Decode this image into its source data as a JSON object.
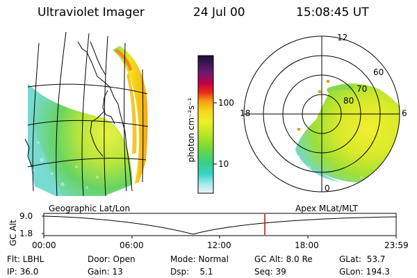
{
  "header": {
    "instrument": "Ultraviolet Imager",
    "date": "24 Jul 00",
    "time": "15:08:45 UT"
  },
  "colorbar": {
    "unit_label": "photon cm⁻²s⁻¹",
    "ticks": [
      "100",
      "10"
    ]
  },
  "polar": {
    "hour_labels": {
      "top": "12",
      "left": "18",
      "right": "6",
      "bottom": "0"
    },
    "lat_labels": [
      "60",
      "70",
      "80"
    ]
  },
  "projection_labels": {
    "left": "Geographic Lat/Lon",
    "right": "Apex MLat/MLT"
  },
  "timeline": {
    "axis_title": "GC Alt",
    "y_ticks": [
      "9.0",
      "1.8"
    ],
    "x_ticks": [
      "00:00",
      "06:00",
      "12:00",
      "18:00",
      "23:59"
    ],
    "marker_color": "#d10000"
  },
  "footer": {
    "filter": "Flt: LBHL",
    "ip": "IP: 36.0",
    "door": "Door: Open",
    "gain": "Gain: 13",
    "mode": "Mode: Normal",
    "dsp": "Dsp:    5.1",
    "gc_alt": "GC Alt: 8.0 Re",
    "seq": "Seq: 39",
    "glat": "GLat:  53.7",
    "glon": "GLon: 194.3"
  }
}
